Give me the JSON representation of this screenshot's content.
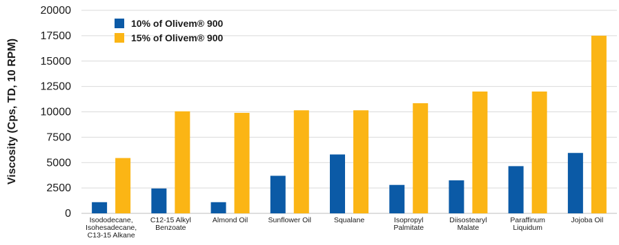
{
  "chart_data": {
    "type": "bar",
    "ylabel": "Viscosity (Cps, TD, 10 RPM)",
    "xlabel": "",
    "ylim": [
      0,
      20000
    ],
    "yticks": [
      0,
      2500,
      5000,
      7500,
      10000,
      12500,
      15000,
      17500,
      20000
    ],
    "grid": true,
    "legend_position": "top-left",
    "categories": [
      [
        "Isododecane,",
        "Isohesadecane,",
        "C13-15 Alkane"
      ],
      [
        "C12-15 Alkyl",
        "Benzoate"
      ],
      [
        "Almond Oil"
      ],
      [
        "Sunflower Oil"
      ],
      [
        "Squalane"
      ],
      [
        "Isopropyl",
        "Palmitate"
      ],
      [
        "Diisostearyl",
        "Malate"
      ],
      [
        "Paraffinum",
        "Liquidum"
      ],
      [
        "Jojoba Oil"
      ]
    ],
    "series": [
      {
        "name": "10% of Olivem® 900",
        "color": "#0b5aa6",
        "values": [
          1100,
          2450,
          1100,
          3700,
          5800,
          2800,
          3250,
          4650,
          5950
        ]
      },
      {
        "name": "15% of Olivem® 900",
        "color": "#fbb515",
        "values": [
          5450,
          10050,
          9900,
          10150,
          10150,
          10850,
          12000,
          12000,
          17500
        ]
      }
    ]
  }
}
